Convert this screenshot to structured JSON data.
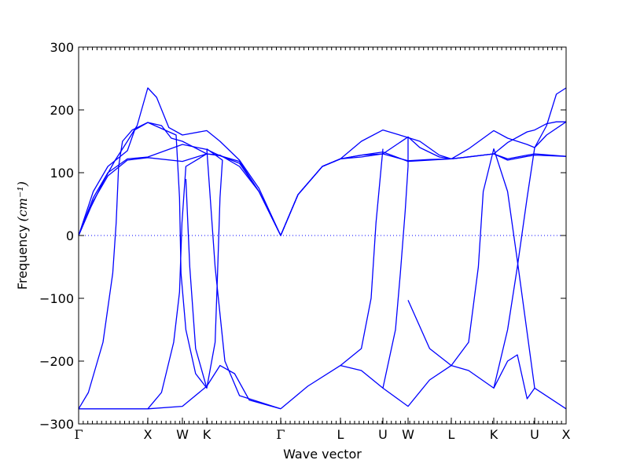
{
  "chart_data": {
    "type": "line",
    "title": "",
    "xlabel": "Wave vector",
    "ylabel": "Frequency",
    "ylabel_unit": "(cm⁻¹)",
    "ylim": [
      -300,
      300
    ],
    "yticks": [
      -300,
      -200,
      -100,
      0,
      100,
      200,
      300
    ],
    "grid": false,
    "legend": "none",
    "line_color": "#0000ff",
    "zero_line": {
      "y": 0,
      "style": "dotted",
      "color": "#0000ff"
    },
    "xlim": [
      0,
      1
    ],
    "high_symmetry_points": [
      {
        "label": "Γ",
        "x": 0.0
      },
      {
        "label": "X",
        "x": 0.1419
      },
      {
        "label": "W",
        "x": 0.2129
      },
      {
        "label": "K",
        "x": 0.2629
      },
      {
        "label": "Γ",
        "x": 0.4145
      },
      {
        "label": "L",
        "x": 0.5371
      },
      {
        "label": "U",
        "x": 0.6242
      },
      {
        "label": "W",
        "x": 0.6758
      },
      {
        "label": "L",
        "x": 0.7645
      },
      {
        "label": "K",
        "x": 0.8516
      },
      {
        "label": "U",
        "x": 0.9355
      },
      {
        "label": "X",
        "x": 1.0
      }
    ],
    "series": [
      {
        "values": [
          [
            0,
            0
          ],
          [
            0.025,
            45
          ],
          [
            0.05,
            85
          ],
          [
            0.075,
            120
          ],
          [
            0.1,
            150
          ],
          [
            0.12,
            175
          ],
          [
            0.1419,
            235
          ],
          [
            0.16,
            220
          ],
          [
            0.185,
            172
          ],
          [
            0.2129,
            160
          ],
          [
            0.2629,
            167
          ],
          [
            0.29,
            150
          ],
          [
            0.33,
            120
          ],
          [
            0.37,
            75
          ],
          [
            0.4145,
            0
          ],
          [
            0.45,
            65
          ],
          [
            0.5,
            110
          ],
          [
            0.5371,
            122
          ],
          [
            0.58,
            150
          ],
          [
            0.6242,
            168
          ],
          [
            0.65,
            162
          ],
          [
            0.6758,
            156
          ],
          [
            0.7,
            150
          ],
          [
            0.74,
            128
          ],
          [
            0.7645,
            122
          ],
          [
            0.8,
            138
          ],
          [
            0.8516,
            167
          ],
          [
            0.88,
            155
          ],
          [
            0.92,
            145
          ],
          [
            0.9355,
            140
          ],
          [
            0.96,
            175
          ],
          [
            0.98,
            225
          ],
          [
            1.0,
            235
          ]
        ]
      },
      {
        "values": [
          [
            0,
            0
          ],
          [
            0.03,
            70
          ],
          [
            0.06,
            110
          ],
          [
            0.1,
            135
          ],
          [
            0.115,
            168
          ],
          [
            0.1419,
            180
          ],
          [
            0.17,
            175
          ],
          [
            0.19,
            155
          ],
          [
            0.2129,
            150
          ],
          [
            0.2629,
            130
          ],
          [
            0.29,
            128
          ],
          [
            0.33,
            110
          ],
          [
            0.37,
            70
          ],
          [
            0.4145,
            0
          ],
          [
            0.45,
            65
          ],
          [
            0.5,
            110
          ],
          [
            0.5371,
            122
          ],
          [
            0.58,
            125
          ],
          [
            0.6242,
            130
          ],
          [
            0.6758,
            157
          ],
          [
            0.7,
            140
          ],
          [
            0.74,
            125
          ],
          [
            0.7645,
            122
          ],
          [
            0.8,
            125
          ],
          [
            0.8516,
            130
          ],
          [
            0.88,
            148
          ],
          [
            0.92,
            165
          ],
          [
            0.9355,
            168
          ],
          [
            0.96,
            178
          ],
          [
            0.98,
            181
          ],
          [
            1.0,
            181
          ]
        ]
      },
      {
        "values": [
          [
            0,
            0
          ],
          [
            0.03,
            60
          ],
          [
            0.06,
            100
          ],
          [
            0.1,
            122
          ],
          [
            0.1419,
            125
          ],
          [
            0.2129,
            145
          ],
          [
            0.2629,
            137
          ],
          [
            0.29,
            127
          ],
          [
            0.33,
            115
          ],
          [
            0.37,
            70
          ],
          [
            0.4145,
            0
          ],
          [
            0.45,
            65
          ],
          [
            0.5,
            110
          ],
          [
            0.5371,
            122
          ],
          [
            0.58,
            128
          ],
          [
            0.6242,
            133
          ],
          [
            0.6758,
            118
          ],
          [
            0.72,
            120
          ],
          [
            0.7645,
            122
          ],
          [
            0.8516,
            130
          ],
          [
            0.88,
            122
          ],
          [
            0.92,
            128
          ],
          [
            0.9355,
            130
          ],
          [
            1.0,
            126
          ]
        ]
      },
      {
        "values": [
          [
            0,
            0
          ],
          [
            0.03,
            55
          ],
          [
            0.06,
            95
          ],
          [
            0.1,
            120
          ],
          [
            0.1419,
            124
          ],
          [
            0.2129,
            118
          ],
          [
            0.2629,
            130
          ],
          [
            0.29,
            127
          ],
          [
            0.33,
            118
          ],
          [
            0.37,
            70
          ],
          [
            0.4145,
            0
          ],
          [
            0.45,
            65
          ],
          [
            0.5,
            110
          ],
          [
            0.5371,
            122
          ],
          [
            0.58,
            128
          ],
          [
            0.6242,
            130
          ],
          [
            0.6758,
            119
          ],
          [
            0.72,
            121
          ],
          [
            0.7645,
            122
          ],
          [
            0.8516,
            130
          ],
          [
            0.88,
            120
          ],
          [
            0.92,
            126
          ],
          [
            0.9355,
            128
          ],
          [
            1.0,
            126
          ]
        ]
      },
      {
        "values": [
          [
            0,
            -276
          ],
          [
            0.02,
            -250
          ],
          [
            0.05,
            -170
          ],
          [
            0.07,
            -60
          ],
          [
            0.077,
            20
          ],
          [
            0.082,
            110
          ],
          [
            0.09,
            150
          ],
          [
            0.11,
            168
          ],
          [
            0.1419,
            180
          ]
        ]
      },
      {
        "values": [
          [
            0,
            -276
          ],
          [
            0.05,
            -276
          ],
          [
            0.1419,
            -276
          ],
          [
            0.17,
            -250
          ],
          [
            0.195,
            -170
          ],
          [
            0.207,
            -90
          ],
          [
            0.212,
            20
          ],
          [
            0.22,
            110
          ],
          [
            0.2629,
            130
          ]
        ]
      },
      {
        "values": [
          [
            0.1419,
            -276
          ],
          [
            0.2129,
            -272
          ],
          [
            0.2629,
            -240
          ],
          [
            0.29,
            -207
          ],
          [
            0.32,
            -220
          ],
          [
            0.35,
            -262
          ],
          [
            0.4145,
            -276
          ]
        ]
      },
      {
        "values": [
          [
            0.1419,
            180
          ],
          [
            0.2,
            160
          ],
          [
            0.207,
            60
          ],
          [
            0.21,
            -60
          ],
          [
            0.22,
            -150
          ],
          [
            0.24,
            -220
          ],
          [
            0.2629,
            -243
          ],
          [
            0.28,
            -170
          ],
          [
            0.285,
            -60
          ],
          [
            0.29,
            60
          ],
          [
            0.295,
            120
          ],
          [
            0.2629,
            138
          ]
        ]
      },
      {
        "values": [
          [
            0.22,
            90
          ],
          [
            0.228,
            -50
          ],
          [
            0.24,
            -180
          ],
          [
            0.2629,
            -243
          ]
        ]
      },
      {
        "values": [
          [
            0.2629,
            138
          ],
          [
            0.28,
            -50
          ],
          [
            0.3,
            -200
          ],
          [
            0.33,
            -255
          ],
          [
            0.4145,
            -276
          ]
        ]
      },
      {
        "values": [
          [
            0.4145,
            -276
          ],
          [
            0.47,
            -240
          ],
          [
            0.5371,
            -207
          ],
          [
            0.58,
            -215
          ],
          [
            0.6242,
            -243
          ],
          [
            0.65,
            -150
          ],
          [
            0.66,
            -60
          ],
          [
            0.67,
            40
          ],
          [
            0.6758,
            110
          ],
          [
            0.6758,
            156
          ]
        ]
      },
      {
        "values": [
          [
            0.5371,
            -207
          ],
          [
            0.58,
            -180
          ],
          [
            0.6,
            -100
          ],
          [
            0.61,
            20
          ],
          [
            0.6242,
            138
          ]
        ]
      },
      {
        "values": [
          [
            0.6242,
            -243
          ],
          [
            0.6758,
            -272
          ],
          [
            0.72,
            -230
          ],
          [
            0.7645,
            -207
          ],
          [
            0.8,
            -215
          ],
          [
            0.8516,
            -243
          ],
          [
            0.88,
            -200
          ],
          [
            0.9,
            -190
          ],
          [
            0.92,
            -260
          ],
          [
            0.9355,
            -243
          ],
          [
            1.0,
            -276
          ]
        ]
      },
      {
        "values": [
          [
            0.6758,
            -103
          ],
          [
            0.72,
            -180
          ],
          [
            0.7645,
            -207
          ],
          [
            0.8,
            -170
          ],
          [
            0.82,
            -50
          ],
          [
            0.83,
            70
          ],
          [
            0.8516,
            138
          ],
          [
            0.88,
            70
          ],
          [
            0.9,
            -40
          ],
          [
            0.9355,
            -243
          ]
        ]
      },
      {
        "values": [
          [
            0.8516,
            -243
          ],
          [
            0.88,
            -150
          ],
          [
            0.9,
            -50
          ],
          [
            0.92,
            60
          ],
          [
            0.9355,
            140
          ],
          [
            0.96,
            160
          ],
          [
            1.0,
            181
          ]
        ]
      }
    ]
  }
}
